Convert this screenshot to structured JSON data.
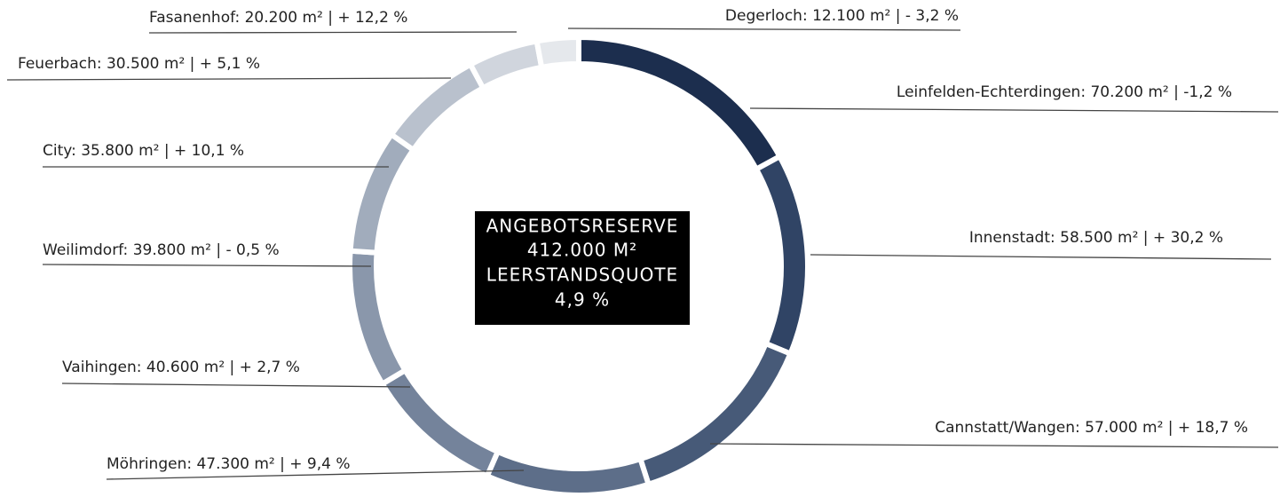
{
  "chart_data": {
    "type": "donut",
    "labels": [
      "Leinfelden-Echterdingen: 70.200 m² | -1,2 %",
      "Innenstadt: 58.500 m² | + 30,2 %",
      "Cannstatt/Wangen: 57.000 m² | + 18,7 %",
      "Möhringen: 47.300 m² | + 9,4 %",
      "Vaihingen: 40.600 m² | + 2,7 %",
      "Weilimdorf: 39.800 m² | - 0,5 %",
      "City: 35.800 m² | + 10,1 %",
      "Feuerbach: 30.500 m² | + 5,1 %",
      "Fasanenhof: 20.200 m² | + 12,2 %",
      "Degerloch: 12.100 m² | - 3,2 %"
    ],
    "values": [
      70200,
      58500,
      57000,
      47300,
      40600,
      39800,
      35800,
      30500,
      20200,
      12100
    ],
    "changes": [
      -1.2,
      30.2,
      18.7,
      9.4,
      2.7,
      -0.5,
      10.1,
      5.1,
      12.2,
      -3.2
    ],
    "colors": [
      "#1c2e4e",
      "#304465",
      "#475a78",
      "#5d6e89",
      "#74839b",
      "#8a97ab",
      "#a1acbc",
      "#b9c1cd",
      "#d0d5dd",
      "#e5e8ec"
    ],
    "center_text": [
      "ANGEBOTSRESERVE",
      "412.000 M²",
      "LEERSTANDSQUOTE",
      "4,9 %"
    ]
  }
}
